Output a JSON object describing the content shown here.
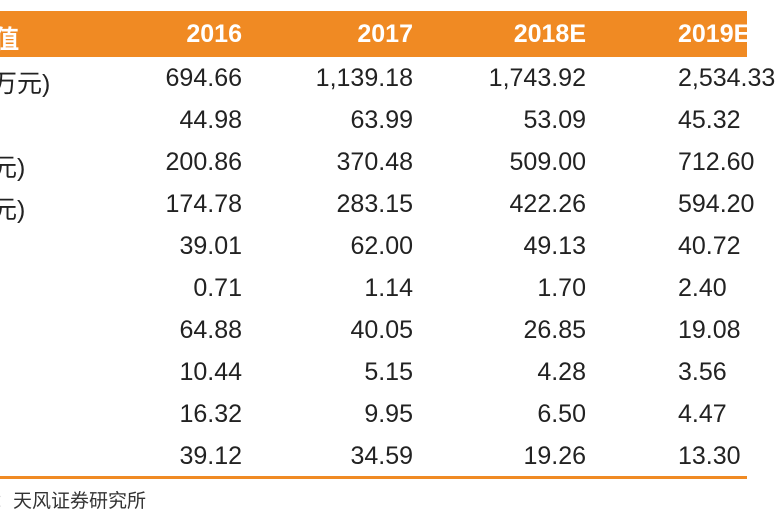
{
  "header": {
    "label": "值",
    "years": [
      "2016",
      "2017",
      "2018E",
      "2019E"
    ]
  },
  "rows": [
    {
      "label": "万元)",
      "values": [
        "694.66",
        "1,139.18",
        "1,743.92",
        "2,534.33"
      ]
    },
    {
      "label": "",
      "values": [
        "44.98",
        "63.99",
        "53.09",
        "45.32"
      ]
    },
    {
      "label": "元)",
      "values": [
        "200.86",
        "370.48",
        "509.00",
        "712.60"
      ]
    },
    {
      "label": "元)",
      "values": [
        "174.78",
        "283.15",
        "422.26",
        "594.20"
      ]
    },
    {
      "label": "",
      "values": [
        "39.01",
        "62.00",
        "49.13",
        "40.72"
      ]
    },
    {
      "label": "",
      "values": [
        "0.71",
        "1.14",
        "1.70",
        "2.40"
      ]
    },
    {
      "label": "",
      "values": [
        "64.88",
        "40.05",
        "26.85",
        "19.08"
      ]
    },
    {
      "label": "",
      "values": [
        "10.44",
        "5.15",
        "4.28",
        "3.56"
      ]
    },
    {
      "label": "",
      "values": [
        "16.32",
        "9.95",
        "6.50",
        "4.47"
      ]
    },
    {
      "label": "",
      "values": [
        "39.12",
        "34.59",
        "19.26",
        "13.30"
      ]
    }
  ],
  "source": "：天风证券研究所",
  "colors": {
    "header_bg": "#f08a23"
  }
}
